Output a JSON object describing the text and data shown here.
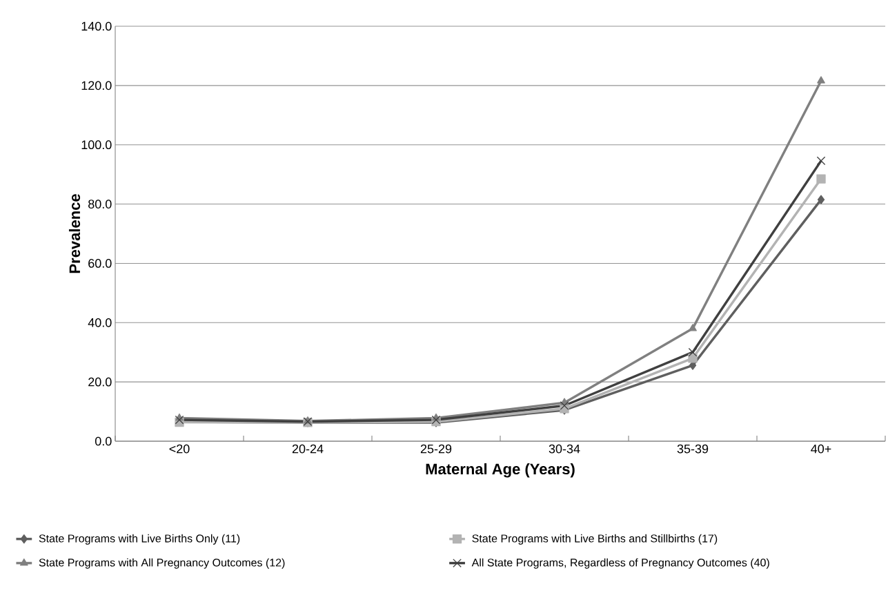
{
  "chart_data": {
    "type": "line",
    "xlabel": "Maternal Age (Years)",
    "ylabel": "Prevalence",
    "categories": [
      "<20",
      "20-24",
      "25-29",
      "30-34",
      "35-39",
      "40+"
    ],
    "series": [
      {
        "name": "State Programs with Live Births Only (11)",
        "color": "#5f5f5f",
        "marker": "diamond",
        "values": [
          6.5,
          6.3,
          6.3,
          10.5,
          25.6,
          81.5
        ]
      },
      {
        "name": "State Programs with Live Births and Stillbirths (17)",
        "color": "#b3b3b3",
        "marker": "square",
        "values": [
          6.4,
          6.3,
          6.6,
          11,
          28,
          88.5
        ]
      },
      {
        "name": "State Programs with All Pregnancy Outcomes (12)",
        "color": "#808080",
        "marker": "triangle",
        "values": [
          7.8,
          6.8,
          7.8,
          13,
          38,
          121.6
        ]
      },
      {
        "name": "All State Programs, Regardless of Pregnancy Outcomes (40)",
        "color": "#404040",
        "marker": "cross",
        "values": [
          7.2,
          6.6,
          7.2,
          12,
          30,
          94.6
        ]
      }
    ],
    "ylim": [
      0,
      140
    ],
    "yticks": [
      {
        "value": 0,
        "label": "0.0"
      },
      {
        "value": 20,
        "label": "20.0"
      },
      {
        "value": 40,
        "label": "40.0"
      },
      {
        "value": 60,
        "label": "60.0"
      },
      {
        "value": 80,
        "label": "80.0"
      },
      {
        "value": 100,
        "label": "100.0"
      },
      {
        "value": 120,
        "label": "120.0"
      },
      {
        "value": 140,
        "label": "140.0"
      }
    ],
    "grid": "y",
    "legend": "bottom"
  }
}
